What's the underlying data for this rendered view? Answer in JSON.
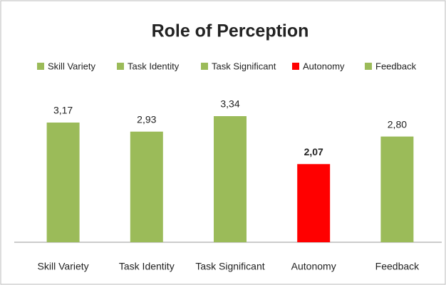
{
  "chart_data": {
    "type": "bar",
    "title": "Role of Perception",
    "categories": [
      "Skill Variety",
      "Task Identity",
      "Task Significant",
      "Autonomy",
      "Feedback"
    ],
    "values": [
      3.17,
      2.93,
      3.34,
      2.07,
      2.8
    ],
    "value_labels": [
      "3,17",
      "2,93",
      "3,34",
      "2,07",
      "2,80"
    ],
    "colors": [
      "#9bbb59",
      "#9bbb59",
      "#9bbb59",
      "#ff0000",
      "#9bbb59"
    ],
    "legend": "top"
  }
}
